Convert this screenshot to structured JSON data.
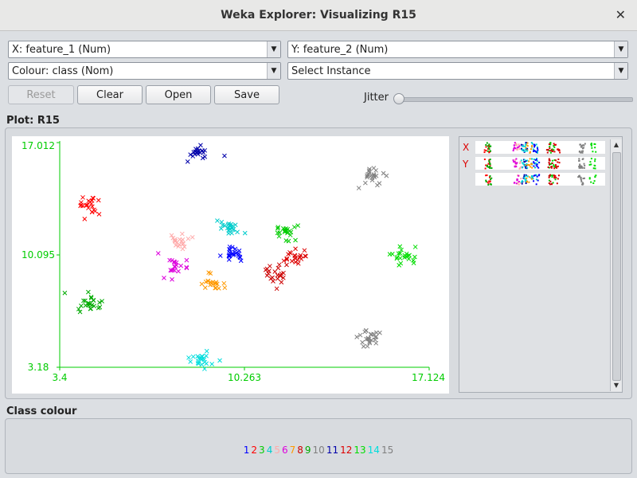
{
  "window": {
    "title": "Weka Explorer: Visualizing R15"
  },
  "controls": {
    "x_axis": "X: feature_1 (Num)",
    "y_axis": "Y: feature_2 (Num)",
    "colour": "Colour: class (Nom)",
    "select_instance": "Select Instance",
    "reset_label": "Reset",
    "clear_label": "Clear",
    "open_label": "Open",
    "save_label": "Save",
    "jitter_label": "Jitter",
    "jitter_value": 0
  },
  "plot": {
    "label": "Plot: R15",
    "attr_x_label": "X",
    "attr_y_label": "Y"
  },
  "class_colour": {
    "label": "Class colour",
    "classes": [
      {
        "label": "1",
        "color": "#0000ff"
      },
      {
        "label": "2",
        "color": "#ff0000"
      },
      {
        "label": "3",
        "color": "#00cc00"
      },
      {
        "label": "4",
        "color": "#00cccc"
      },
      {
        "label": "5",
        "color": "#ffaaaa"
      },
      {
        "label": "6",
        "color": "#dd00dd"
      },
      {
        "label": "7",
        "color": "#ff9900"
      },
      {
        "label": "8",
        "color": "#cc0000"
      },
      {
        "label": "9",
        "color": "#00aa00"
      },
      {
        "label": "10",
        "color": "#808080"
      },
      {
        "label": "11",
        "color": "#0000aa"
      },
      {
        "label": "12",
        "color": "#dd0000"
      },
      {
        "label": "13",
        "color": "#00dd00"
      },
      {
        "label": "14",
        "color": "#00dddd"
      },
      {
        "label": "15",
        "color": "#808080"
      }
    ]
  },
  "chart_data": {
    "type": "scatter",
    "xlim": [
      3.4,
      17.124
    ],
    "ylim": [
      3.18,
      17.012
    ],
    "x_ticks": [
      "3.4",
      "10.263",
      "17.124"
    ],
    "y_ticks": [
      "3.18",
      "10.095",
      "17.012"
    ],
    "axis_color": "#00cc00",
    "clusters": [
      {
        "class": "11",
        "color": "#0000aa",
        "x": 8.6,
        "y": 16.3,
        "n": 22
      },
      {
        "class": "10",
        "color": "#808080",
        "x": 15.0,
        "y": 15.0,
        "n": 22
      },
      {
        "class": "2",
        "color": "#ff0000",
        "x": 4.45,
        "y": 13.2,
        "n": 22
      },
      {
        "class": "4",
        "color": "#00cccc",
        "x": 9.7,
        "y": 11.8,
        "n": 24
      },
      {
        "class": "3",
        "color": "#00cc00",
        "x": 11.7,
        "y": 11.5,
        "n": 22
      },
      {
        "class": "5",
        "color": "#ffaaaa",
        "x": 7.9,
        "y": 10.95,
        "n": 20
      },
      {
        "class": "1",
        "color": "#0000ff",
        "x": 9.9,
        "y": 10.15,
        "n": 22
      },
      {
        "class": "12",
        "color": "#dd0000",
        "x": 12.2,
        "y": 10.05,
        "n": 22
      },
      {
        "class": "13",
        "color": "#00dd00",
        "x": 16.2,
        "y": 9.95,
        "n": 22
      },
      {
        "class": "6",
        "color": "#dd00dd",
        "x": 7.7,
        "y": 9.25,
        "n": 20
      },
      {
        "class": "8",
        "color": "#cc0000",
        "x": 11.4,
        "y": 8.85,
        "n": 22
      },
      {
        "class": "7",
        "color": "#ff9900",
        "x": 9.1,
        "y": 8.4,
        "n": 20
      },
      {
        "class": "9",
        "color": "#00aa00",
        "x": 4.6,
        "y": 7.1,
        "n": 24
      },
      {
        "class": "15",
        "color": "#808080",
        "x": 14.9,
        "y": 5.0,
        "n": 24
      },
      {
        "class": "14",
        "color": "#00dddd",
        "x": 8.6,
        "y": 3.55,
        "n": 22
      }
    ]
  }
}
